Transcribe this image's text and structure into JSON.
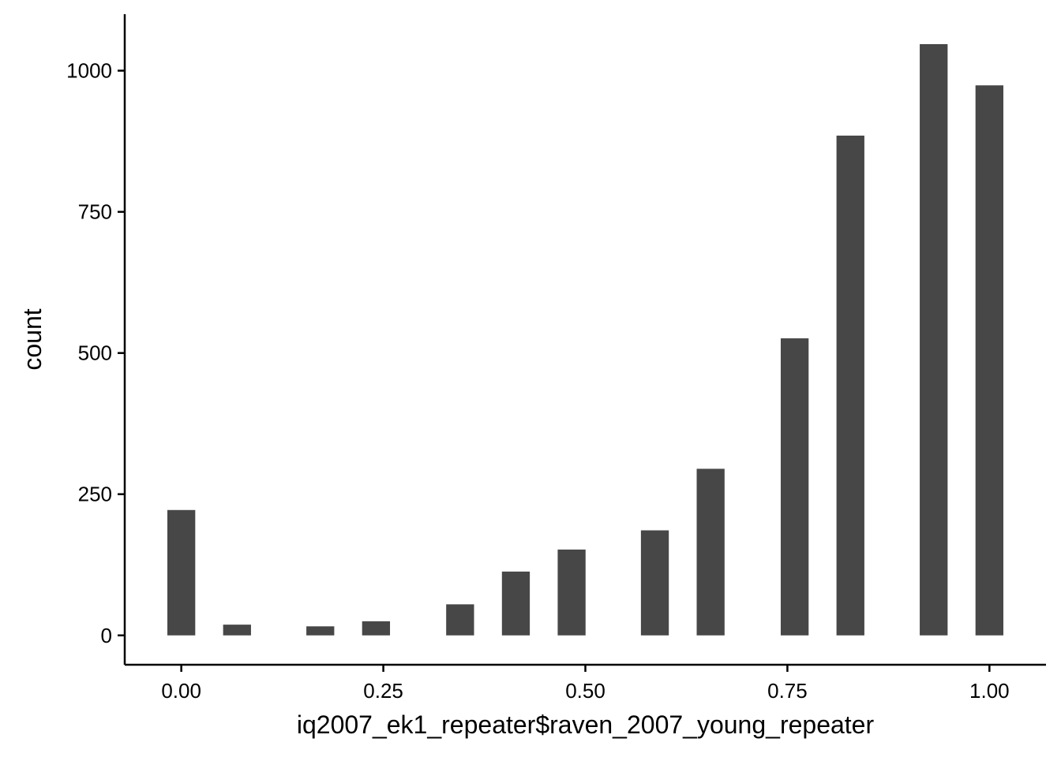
{
  "chart_data": {
    "type": "bar",
    "xlabel": "iq2007_ek1_repeater$raven_2007_young_repeater",
    "ylabel": "count",
    "x_ticks": [
      "0.00",
      "0.25",
      "0.50",
      "0.75",
      "1.00"
    ],
    "x_tick_values": [
      0,
      0.25,
      0.5,
      0.75,
      1.0
    ],
    "y_ticks": [
      "0",
      "250",
      "500",
      "750",
      "1000"
    ],
    "y_tick_values": [
      0,
      250,
      500,
      750,
      1000
    ],
    "xlim": [
      -0.07,
      1.07
    ],
    "ylim": [
      -52,
      1100
    ],
    "bar_width": 0.0345,
    "bars": [
      {
        "x": 0.0,
        "count": 222
      },
      {
        "x": 0.069,
        "count": 19
      },
      {
        "x": 0.172,
        "count": 16
      },
      {
        "x": 0.241,
        "count": 25
      },
      {
        "x": 0.345,
        "count": 55
      },
      {
        "x": 0.414,
        "count": 113
      },
      {
        "x": 0.483,
        "count": 152
      },
      {
        "x": 0.586,
        "count": 186
      },
      {
        "x": 0.655,
        "count": 295
      },
      {
        "x": 0.759,
        "count": 526
      },
      {
        "x": 0.828,
        "count": 885
      },
      {
        "x": 0.931,
        "count": 1047
      },
      {
        "x": 1.0,
        "count": 974
      }
    ],
    "bar_color": "#474747",
    "grid": false,
    "legend": "none"
  }
}
